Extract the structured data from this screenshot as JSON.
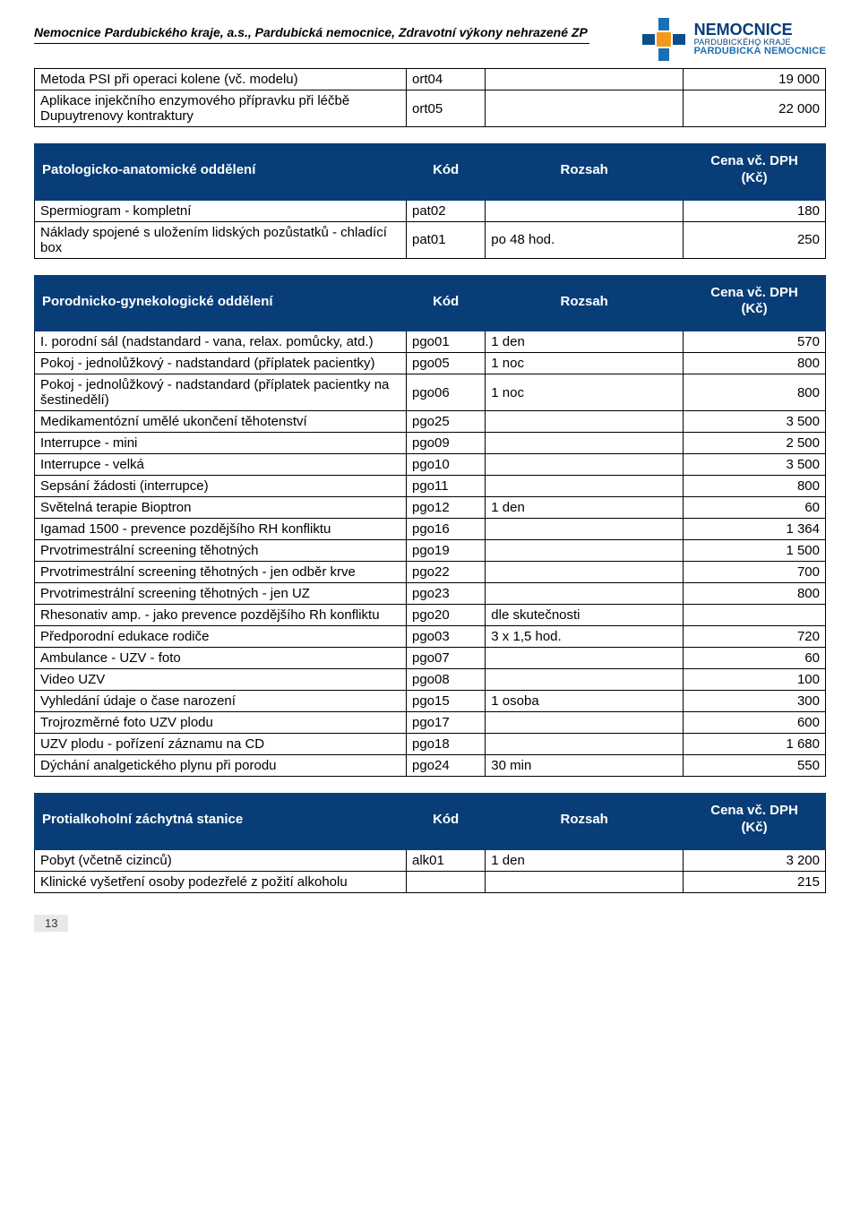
{
  "header": {
    "org_line": "Nemocnice Pardubického kraje, a.s., Pardubická nemocnice, Zdravotní výkony nehrazené ZP",
    "logo_text1": "NEMOCNICE",
    "logo_text2": "PARDUBICKÉHO KRAJE",
    "logo_text3": "PARDUBICKÁ NEMOCNICE"
  },
  "colors": {
    "header_bg": "#083d77",
    "header_fg": "#ffffff",
    "border": "#000000",
    "logo_orange": "#f39a1e",
    "logo_blue1": "#1b6fb3",
    "logo_blue2": "#0b4f8a"
  },
  "table_top": {
    "rows": [
      {
        "desc": "Metoda PSI při operaci kolene (vč. modelu)",
        "code": "ort04",
        "scope": "",
        "price": "19 000"
      },
      {
        "desc": "Aplikace injekčního enzymového přípravku při léčbě Dupuytrenovy kontraktury",
        "code": "ort05",
        "scope": "",
        "price": "22 000"
      }
    ]
  },
  "sections": [
    {
      "title": "Patologicko-anatomické oddělení",
      "col_code": "Kód",
      "col_scope": "Rozsah",
      "col_price1": "Cena vč. DPH",
      "col_price2": "(Kč)",
      "rows": [
        {
          "desc": "Spermiogram - kompletní",
          "code": "pat02",
          "scope": "",
          "price": "180"
        },
        {
          "desc": "Náklady spojené s uložením lidských pozůstatků - chladící box",
          "code": "pat01",
          "scope": "po 48 hod.",
          "price": "250"
        }
      ]
    },
    {
      "title": "Porodnicko-gynekologické oddělení",
      "col_code": "Kód",
      "col_scope": "Rozsah",
      "col_price1": "Cena vč. DPH",
      "col_price2": "(Kč)",
      "rows": [
        {
          "desc": "I. porodní sál (nadstandard - vana, relax. pomůcky, atd.)",
          "code": "pgo01",
          "scope": "1 den",
          "price": "570"
        },
        {
          "desc": "Pokoj - jednolůžkový - nadstandard (příplatek pacientky)",
          "code": "pgo05",
          "scope": "1 noc",
          "price": "800"
        },
        {
          "desc": "Pokoj - jednolůžkový - nadstandard (příplatek pacientky na šestinedělí)",
          "code": "pgo06",
          "scope": "1 noc",
          "price": "800"
        },
        {
          "desc": "Medikamentózní umělé ukončení těhotenství",
          "code": "pgo25",
          "scope": "",
          "price": "3 500"
        },
        {
          "desc": "Interrupce - mini",
          "code": "pgo09",
          "scope": "",
          "price": "2 500"
        },
        {
          "desc": "Interrupce - velká",
          "code": "pgo10",
          "scope": "",
          "price": "3 500"
        },
        {
          "desc": "Sepsání žádosti (interrupce)",
          "code": "pgo11",
          "scope": "",
          "price": "800"
        },
        {
          "desc": "Světelná terapie Bioptron",
          "code": "pgo12",
          "scope": "1 den",
          "price": "60"
        },
        {
          "desc": "Igamad 1500 - prevence pozdějšího RH konfliktu",
          "code": "pgo16",
          "scope": "",
          "price": "1 364"
        },
        {
          "desc": "Prvotrimestrální screening těhotných",
          "code": "pgo19",
          "scope": "",
          "price": "1 500"
        },
        {
          "desc": "Prvotrimestrální screening těhotných - jen odběr krve",
          "code": "pgo22",
          "scope": "",
          "price": "700"
        },
        {
          "desc": "Prvotrimestrální screening těhotných - jen UZ",
          "code": "pgo23",
          "scope": "",
          "price": "800"
        },
        {
          "desc": "Rhesonativ amp. - jako prevence pozdějšího Rh konfliktu",
          "code": "pgo20",
          "scope": "dle skutečnosti",
          "price": ""
        },
        {
          "desc": "Předporodní edukace rodiče",
          "code": "pgo03",
          "scope": "3 x 1,5 hod.",
          "price": "720"
        },
        {
          "desc": "Ambulance - UZV - foto",
          "code": "pgo07",
          "scope": "",
          "price": "60"
        },
        {
          "desc": "Video UZV",
          "code": "pgo08",
          "scope": "",
          "price": "100"
        },
        {
          "desc": "Vyhledání údaje o čase narození",
          "code": "pgo15",
          "scope": "1 osoba",
          "price": "300"
        },
        {
          "desc": "Trojrozměrné foto UZV plodu",
          "code": "pgo17",
          "scope": "",
          "price": "600"
        },
        {
          "desc": "UZV plodu - pořízení záznamu na CD",
          "code": "pgo18",
          "scope": "",
          "price": "1 680"
        },
        {
          "desc": "Dýchání analgetického plynu při porodu",
          "code": "pgo24",
          "scope": "30 min",
          "price": "550"
        }
      ]
    },
    {
      "title": "Protialkoholní záchytná stanice",
      "col_code": "Kód",
      "col_scope": "Rozsah",
      "col_price1": "Cena vč. DPH",
      "col_price2": "(Kč)",
      "rows": [
        {
          "desc": "Pobyt (včetně cizinců)",
          "code": "alk01",
          "scope": "1 den",
          "price": "3 200"
        },
        {
          "desc": "Klinické vyšetření osoby podezřelé z požití alkoholu",
          "code": "",
          "scope": "",
          "price": "215"
        }
      ]
    }
  ],
  "page_number": "13"
}
